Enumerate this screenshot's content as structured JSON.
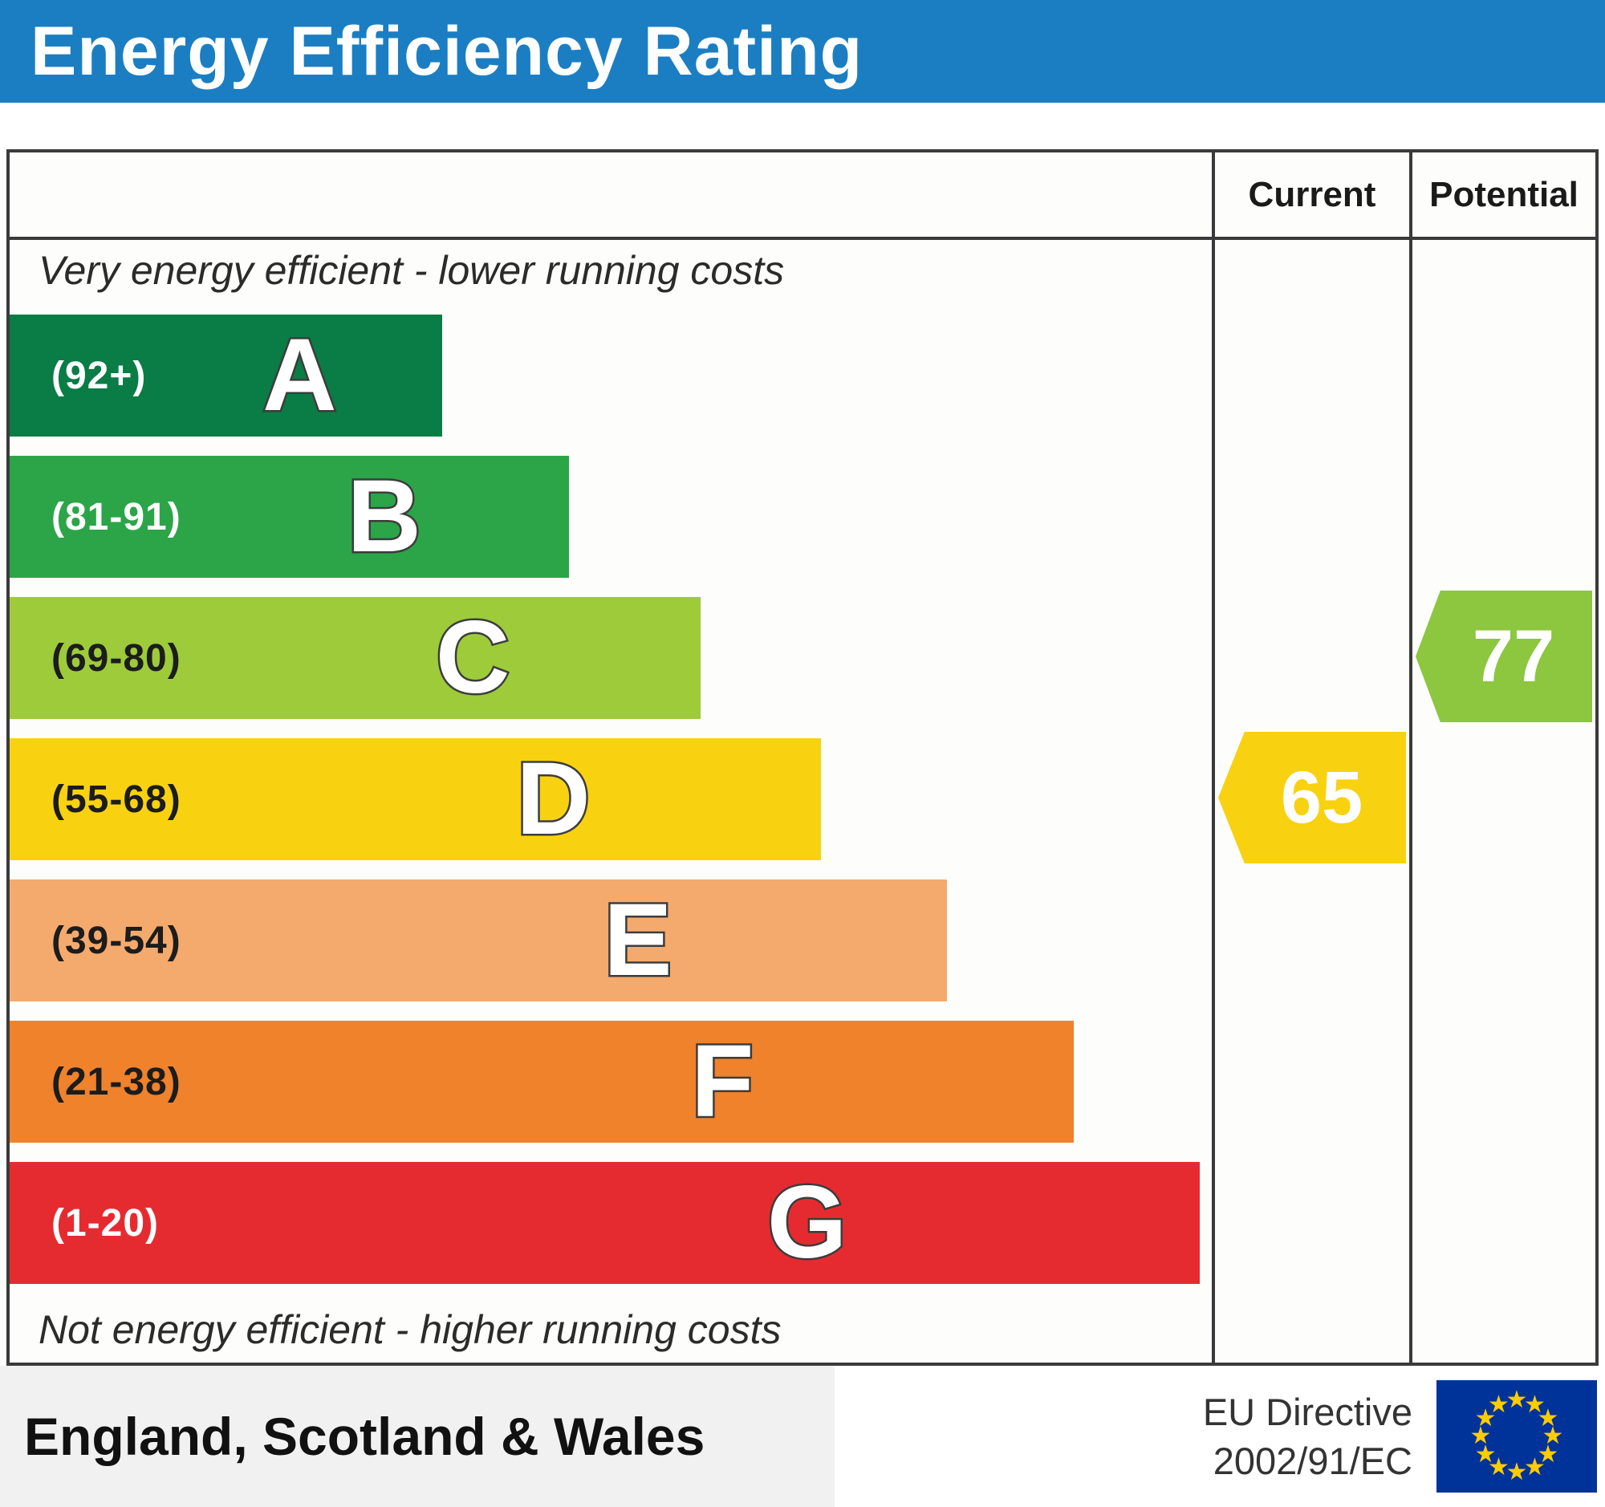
{
  "header": {
    "title": "Energy Efficiency Rating",
    "background": "#1b7ec2"
  },
  "columns": {
    "current_label": "Current",
    "potential_label": "Potential"
  },
  "chart_data": {
    "type": "bar",
    "title": "Energy Efficiency Rating",
    "top_caption": "Very energy efficient - lower running costs",
    "bottom_caption": "Not energy efficient - higher running costs",
    "bands": [
      {
        "letter": "A",
        "range": "(92+)",
        "min": 92,
        "max": 100,
        "color": "#0a7c45",
        "label_color": "#ffffff",
        "width_pct": 36
      },
      {
        "letter": "B",
        "range": "(81-91)",
        "min": 81,
        "max": 91,
        "color": "#2ba548",
        "label_color": "#ffffff",
        "width_pct": 46.5
      },
      {
        "letter": "C",
        "range": "(69-80)",
        "min": 69,
        "max": 80,
        "color": "#9dcb3a",
        "label_color": "#1c1c1c",
        "width_pct": 57.5
      },
      {
        "letter": "D",
        "range": "(55-68)",
        "min": 55,
        "max": 68,
        "color": "#f8d210",
        "label_color": "#1c1c1c",
        "width_pct": 67.5
      },
      {
        "letter": "E",
        "range": "(39-54)",
        "min": 39,
        "max": 54,
        "color": "#f4aa6d",
        "label_color": "#1c1c1c",
        "width_pct": 78
      },
      {
        "letter": "F",
        "range": "(21-38)",
        "min": 21,
        "max": 38,
        "color": "#ef822b",
        "label_color": "#1c1c1c",
        "width_pct": 88.5
      },
      {
        "letter": "G",
        "range": "(1-20)",
        "min": 1,
        "max": 20,
        "color": "#e62b30",
        "label_color": "#ffffff",
        "width_pct": 99
      }
    ],
    "current": {
      "value": 65,
      "band": "D",
      "color": "#f8d210",
      "text_color": "#ffffff"
    },
    "potential": {
      "value": 77,
      "band": "C",
      "color": "#8dc63f",
      "text_color": "#ffffff"
    }
  },
  "footer": {
    "region": "England, Scotland & Wales",
    "directive_line1": "EU Directive",
    "directive_line2": "2002/91/EC",
    "eu_flag": {
      "background": "#003399",
      "star_color": "#ffcc00",
      "star_count": 12
    }
  }
}
